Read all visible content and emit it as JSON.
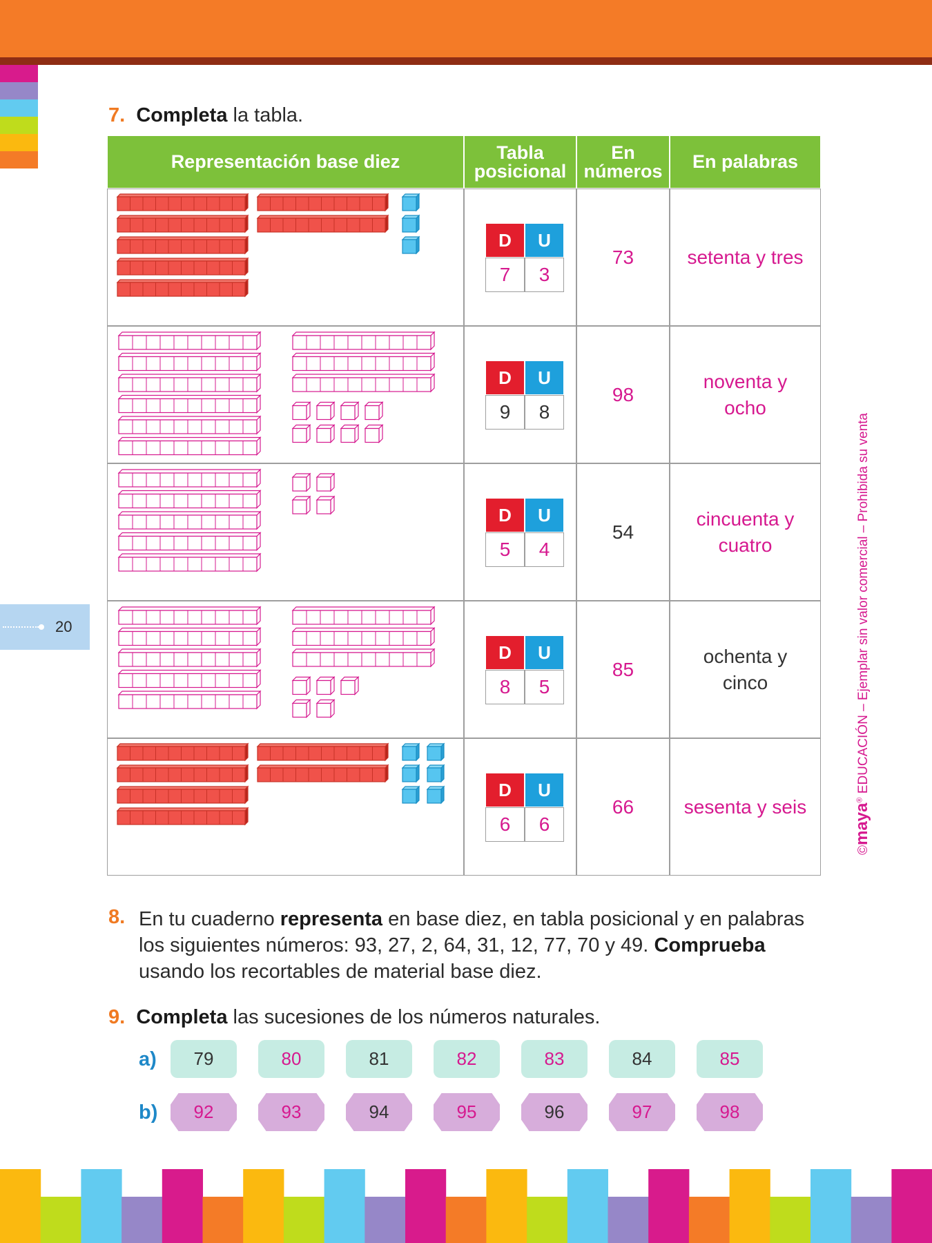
{
  "page_number": "20",
  "side_note": {
    "copyright": "©",
    "brand": "maya",
    "registered": "®",
    "text": "EDUCACIÓN – Ejemplar sin valor comercial – Prohibida su venta"
  },
  "exercise_7": {
    "number": "7.",
    "instruction": [
      {
        "text": "Completa",
        "bold": true
      },
      {
        "text": " la tabla.",
        "bold": false
      }
    ],
    "table": {
      "headers": [
        "Representación base diez",
        "Tabla posicional",
        "En números",
        "En palabras"
      ],
      "place_headers": [
        "D",
        "U"
      ],
      "rows": [
        {
          "tens": 7,
          "units": 3,
          "block_style": "solid",
          "place_values": [
            7,
            3
          ],
          "place_color": "#d6198f",
          "number": 73,
          "number_color": "#d6198f",
          "words": "setenta y tres",
          "words_color": "#d6198f"
        },
        {
          "tens": 9,
          "units": 8,
          "block_style": "outline",
          "place_values": [
            9,
            8
          ],
          "place_color": "#333333",
          "number": 98,
          "number_color": "#d6198f",
          "words": "noventa y ocho",
          "words_color": "#d6198f"
        },
        {
          "tens": 5,
          "units": 4,
          "block_style": "outline",
          "place_values": [
            5,
            4
          ],
          "place_color": "#d6198f",
          "number": 54,
          "number_color": "#333333",
          "words": "cincuenta y cuatro",
          "words_color": "#d6198f"
        },
        {
          "tens": 8,
          "units": 5,
          "block_style": "outline",
          "place_values": [
            8,
            5
          ],
          "place_color": "#d6198f",
          "number": 85,
          "number_color": "#d6198f",
          "words": "ochenta y cinco",
          "words_color": "#333333"
        },
        {
          "tens": 6,
          "units": 6,
          "block_style": "solid",
          "place_values": [
            6,
            6
          ],
          "place_color": "#d6198f",
          "number": 66,
          "number_color": "#d6198f",
          "words": "sesenta y seis",
          "words_color": "#d6198f"
        }
      ]
    }
  },
  "exercise_8": {
    "number": "8.",
    "text": [
      {
        "text": "En tu cuaderno ",
        "bold": false
      },
      {
        "text": "representa",
        "bold": true
      },
      {
        "text": " en base diez, en tabla posicional y en palabras los siguientes números: 93, 27, 2, 64, 31, 12, 77, 70 y 49. ",
        "bold": false
      },
      {
        "text": "Comprueba",
        "bold": true
      },
      {
        "text": " usando los recortables de material base diez.",
        "bold": false
      }
    ]
  },
  "exercise_9": {
    "number": "9.",
    "instruction": [
      {
        "text": "Completa",
        "bold": true
      },
      {
        "text": " las sucesiones de los números naturales.",
        "bold": false
      }
    ],
    "sequences": [
      {
        "label": "a)",
        "style": "rounded",
        "values": [
          79,
          80,
          81,
          82,
          83,
          84,
          85
        ],
        "colors": [
          "#333333",
          "#d6198f",
          "#333333",
          "#d6198f",
          "#d6198f",
          "#333333",
          "#d6198f"
        ]
      },
      {
        "label": "b)",
        "style": "octagon",
        "values": [
          92,
          93,
          94,
          95,
          96,
          97,
          98
        ],
        "colors": [
          "#d6198f",
          "#d6198f",
          "#333333",
          "#d6198f",
          "#333333",
          "#d6198f",
          "#d6198f"
        ]
      }
    ]
  }
}
